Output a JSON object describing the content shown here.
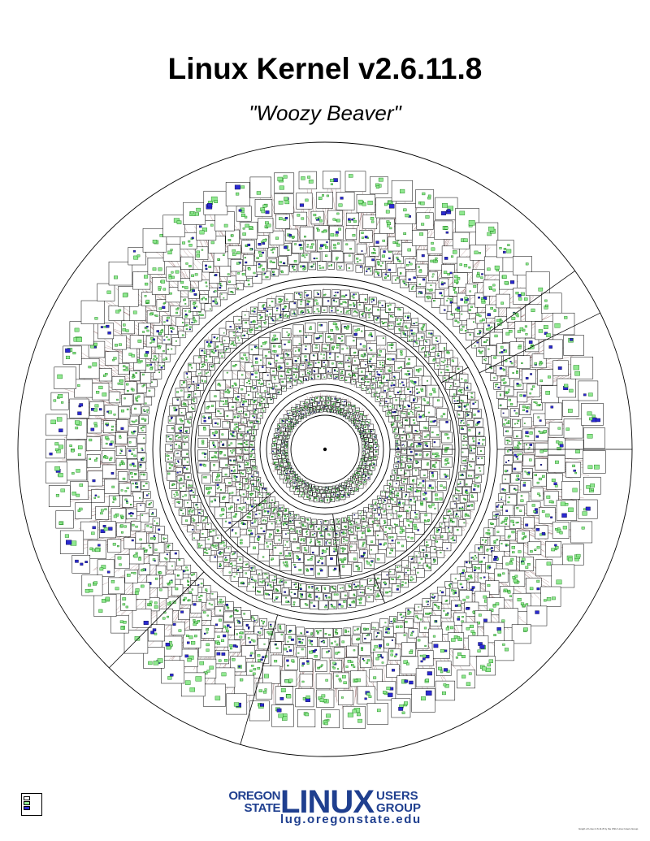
{
  "poster": {
    "title": "Linux Kernel v2.6.11.8",
    "subtitle": "\"Woozy Beaver\""
  },
  "colors": {
    "outline": "#000000",
    "function_fill": "#90e890",
    "function_stroke": "#0a7a0a",
    "macro_fill": "#2a2ad0",
    "edge": "#5a1010",
    "background": "#ffffff"
  },
  "rings": {
    "count": 4,
    "outer_segments": 5,
    "hub_label": ""
  },
  "logo": {
    "line1": "OREGON",
    "line2": "STATE",
    "main": "LINUX",
    "line3": "USERS",
    "line4": "GROUP",
    "url": "lug.oregonstate.edu"
  },
  "credit": "Graph of Linux 2.6.11.8 by the OSU Linux Users Group"
}
